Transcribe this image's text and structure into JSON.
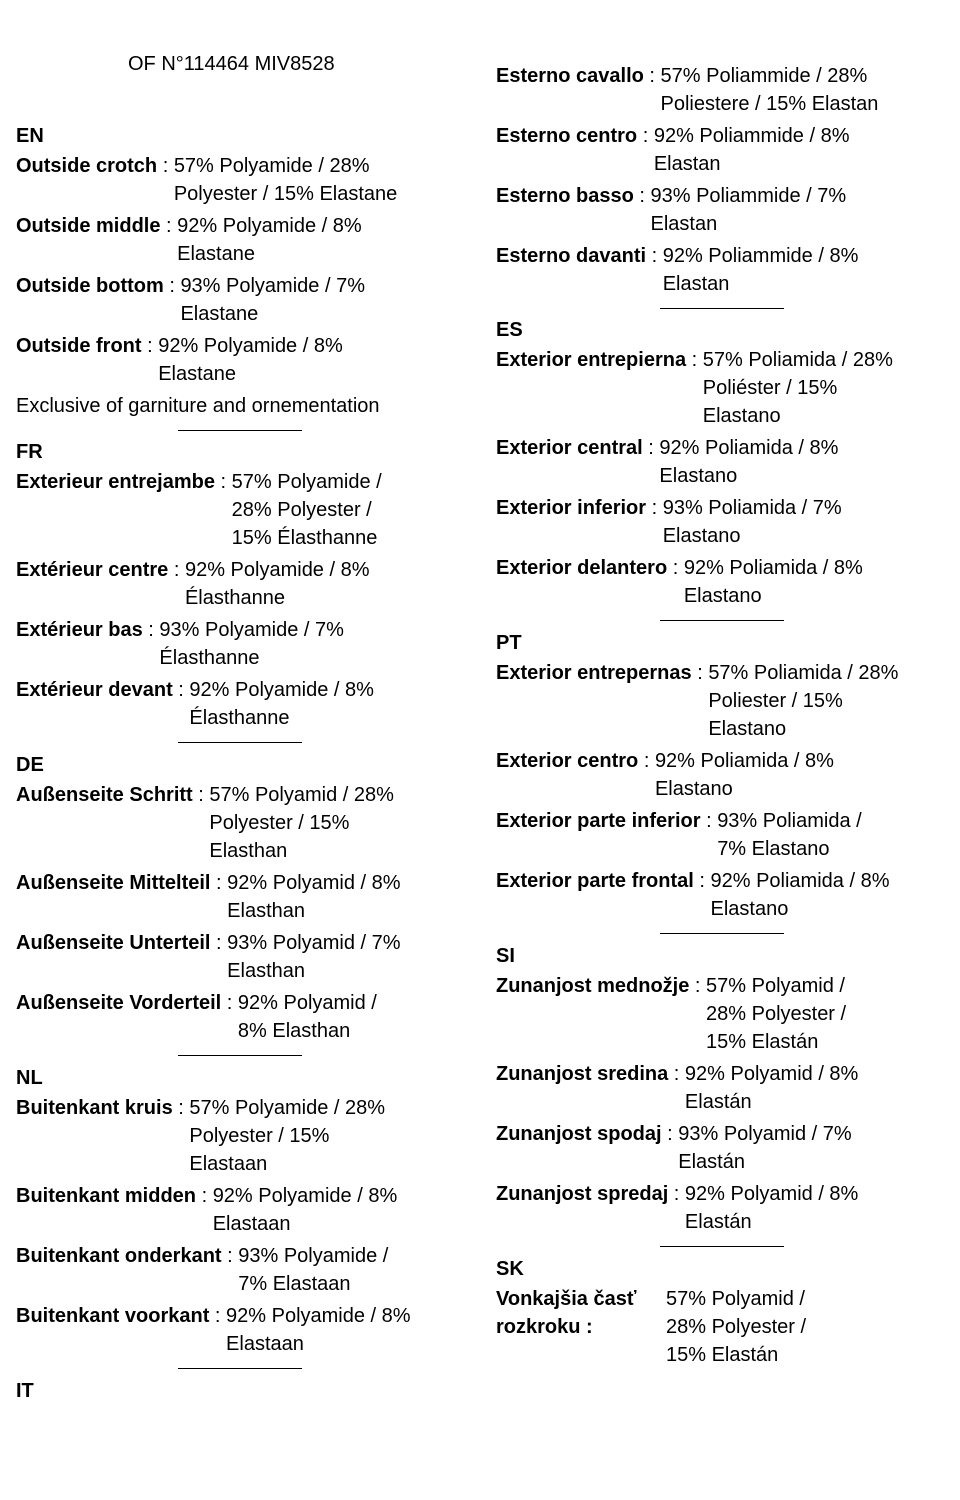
{
  "header": {
    "code": "OF N°114464 MIV8528"
  },
  "sections": {
    "en": {
      "code": "EN",
      "entries": [
        {
          "label": "Outside crotch",
          "value": "57% Polyamide / 28% Polyester / 15% Elastane"
        },
        {
          "label": "Outside middle",
          "value": "92% Polyamide / 8% Elastane"
        },
        {
          "label": "Outside bottom",
          "value": "93% Polyamide / 7% Elastane"
        },
        {
          "label": "Outside front",
          "value": "92% Polyamide / 8% Elastane"
        }
      ],
      "note": "Exclusive of garniture and ornementation"
    },
    "fr": {
      "code": "FR",
      "entries": [
        {
          "label": "Exterieur entrejambe",
          "value": "57% Polyamide / 28% Polyester / 15% Élasthanne"
        },
        {
          "label": "Extérieur centre",
          "value": "92% Polyamide / 8% Élasthanne"
        },
        {
          "label": "Extérieur bas",
          "value": "93% Polyamide / 7% Élasthanne"
        },
        {
          "label": "Extérieur devant",
          "value": "92% Polyamide / 8% Élasthanne"
        }
      ]
    },
    "de": {
      "code": "DE",
      "entries": [
        {
          "label": "Außenseite Schritt",
          "value": "57% Polyamid / 28% Polyester / 15% Elasthan"
        },
        {
          "label": "Außenseite Mittelteil",
          "value": "92% Polyamid / 8% Elasthan"
        },
        {
          "label": "Außenseite Unterteil",
          "value": "93% Polyamid / 7% Elasthan"
        },
        {
          "label": "Außenseite Vorderteil",
          "value": "92% Polyamid / 8% Elasthan"
        }
      ]
    },
    "nl": {
      "code": "NL",
      "entries": [
        {
          "label": "Buitenkant kruis",
          "value": "57% Polyamide / 28% Polyester / 15% Elastaan"
        },
        {
          "label": "Buitenkant midden",
          "value": "92% Polyamide / 8% Elastaan"
        },
        {
          "label": "Buitenkant onderkant",
          "value": "93% Polyamide / 7% Elastaan"
        },
        {
          "label": "Buitenkant voorkant",
          "value": "92% Polyamide / 8% Elastaan"
        }
      ]
    },
    "it": {
      "code": "IT",
      "entries": [
        {
          "label": "Esterno cavallo",
          "value": "57% Poliammide / 28% Poliestere / 15% Elastan"
        },
        {
          "label": "Esterno centro",
          "value": "92% Poliammide / 8% Elastan"
        },
        {
          "label": "Esterno basso",
          "value": "93% Poliammide / 7% Elastan"
        },
        {
          "label": "Esterno davanti",
          "value": "92% Poliammide / 8% Elastan"
        }
      ]
    },
    "es": {
      "code": "ES",
      "entries": [
        {
          "label": "Exterior entrepierna",
          "value": "57% Poliamida / 28% Poliéster / 15% Elastano"
        },
        {
          "label": "Exterior central",
          "value": "92% Poliamida / 8% Elastano"
        },
        {
          "label": "Exterior inferior",
          "value": "93% Poliamida / 7% Elastano"
        },
        {
          "label": "Exterior delantero",
          "value": "92% Poliamida / 8% Elastano"
        }
      ]
    },
    "pt": {
      "code": "PT",
      "entries": [
        {
          "label": "Exterior entrepernas",
          "value": "57% Poliamida / 28% Poliester / 15% Elastano"
        },
        {
          "label": "Exterior centro",
          "value": "92% Poliamida / 8% Elastano"
        },
        {
          "label": "Exterior parte inferior",
          "value": "93% Poliamida / 7% Elastano"
        },
        {
          "label": "Exterior parte frontal",
          "value": "92% Poliamida / 8% Elastano"
        }
      ]
    },
    "si": {
      "code": "SI",
      "entries": [
        {
          "label": "Zunanjost mednožje",
          "value": "57% Polyamid / 28% Polyester / 15% Elastán"
        },
        {
          "label": "Zunanjost sredina",
          "value": "92% Polyamid / 8% Elastán"
        },
        {
          "label": "Zunanjost spodaj",
          "value": "93% Polyamid / 7% Elastán"
        },
        {
          "label": "Zunanjost spredaj",
          "value": "92% Polyamid / 8% Elastán"
        }
      ]
    },
    "sk": {
      "code": "SK",
      "entries": [
        {
          "label": "Vonkajšia časť rozkroku :",
          "value": "57% Polyamid / 28% Polyester / 15% Elastán"
        }
      ]
    }
  },
  "separator": " : "
}
